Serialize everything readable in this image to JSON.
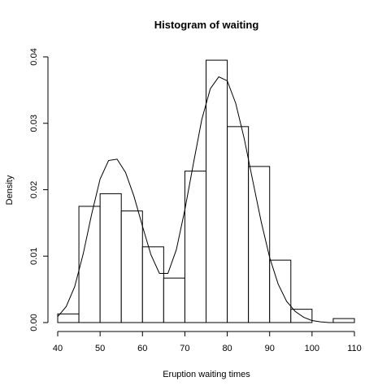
{
  "chart_data": {
    "type": "bar",
    "title": "Histogram of waiting",
    "xlabel": "Eruption waiting times",
    "ylabel": "Density",
    "xlim": [
      40,
      110
    ],
    "ylim": [
      0,
      0.04
    ],
    "x_ticks": [
      40,
      50,
      60,
      70,
      80,
      90,
      100,
      110
    ],
    "y_ticks": [
      0.0,
      0.01,
      0.02,
      0.03,
      0.04
    ],
    "y_tick_labels": [
      "0.00",
      "0.01",
      "0.02",
      "0.03",
      "0.04"
    ],
    "bins": [
      {
        "from": 40,
        "to": 45,
        "density": 0.0013
      },
      {
        "from": 45,
        "to": 50,
        "density": 0.0175
      },
      {
        "from": 50,
        "to": 55,
        "density": 0.0194
      },
      {
        "from": 55,
        "to": 60,
        "density": 0.0168
      },
      {
        "from": 60,
        "to": 65,
        "density": 0.0114
      },
      {
        "from": 65,
        "to": 70,
        "density": 0.0067
      },
      {
        "from": 70,
        "to": 75,
        "density": 0.0228
      },
      {
        "from": 75,
        "to": 80,
        "density": 0.0395
      },
      {
        "from": 80,
        "to": 85,
        "density": 0.0295
      },
      {
        "from": 85,
        "to": 90,
        "density": 0.0235
      },
      {
        "from": 90,
        "to": 95,
        "density": 0.0094
      },
      {
        "from": 95,
        "to": 100,
        "density": 0.002
      },
      {
        "from": 100,
        "to": 105,
        "density": 0.0
      },
      {
        "from": 105,
        "to": 110,
        "density": 0.0006
      }
    ],
    "density_curve": {
      "x": [
        40,
        42,
        44,
        46,
        48,
        50,
        52,
        54,
        56,
        58,
        60,
        62,
        64,
        66,
        68,
        70,
        72,
        74,
        76,
        78,
        80,
        82,
        84,
        86,
        88,
        90,
        92,
        94,
        96,
        98,
        100,
        102,
        104,
        106,
        108,
        110
      ],
      "y": [
        0.0009,
        0.0024,
        0.0054,
        0.0103,
        0.0163,
        0.0216,
        0.0244,
        0.0246,
        0.0226,
        0.019,
        0.0145,
        0.0102,
        0.0074,
        0.0074,
        0.011,
        0.017,
        0.0239,
        0.0306,
        0.0352,
        0.037,
        0.0364,
        0.033,
        0.0277,
        0.0214,
        0.0152,
        0.0098,
        0.0058,
        0.0032,
        0.0017,
        0.0008,
        0.0003,
        0.0001,
        0.0,
        0.0,
        0.0,
        0.0
      ]
    }
  }
}
